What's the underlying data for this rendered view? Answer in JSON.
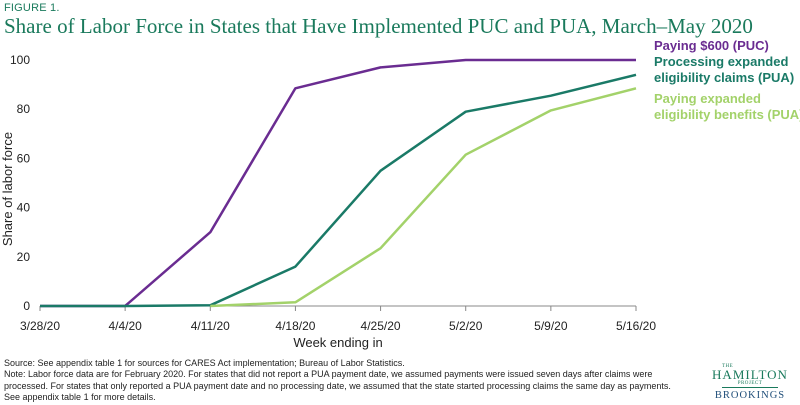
{
  "figure_label": "FIGURE 1.",
  "title": "Share of Labor Force in States that Have Implemented PUC and PUA, March–May 2020",
  "notes": [
    "Source: See appendix table 1 for sources for CARES Act implementation; Bureau of Labor Statistics.",
    "Note: Labor force data are for February 2020. For states that did not report a PUA payment date, we assumed payments were issued seven days after claims were",
    "processed. For states that only reported a PUA payment date and no processing date, we assumed that the state started processing claims the same day as payments.",
    "See appendix table 1 for more details."
  ],
  "logo": {
    "the": "THE",
    "name": "HAMILTON",
    "project": "PROJECT",
    "org": "BROOKINGS"
  },
  "colors": {
    "puc": "#6a2c91",
    "pua_claims": "#1a7a67",
    "pua_benefits": "#a3d26a",
    "title": "#1a7a5c",
    "axis": "#888888"
  },
  "chart_data": {
    "type": "line",
    "categories": [
      "3/28/20",
      "4/4/20",
      "4/11/20",
      "4/18/20",
      "4/25/20",
      "5/2/20",
      "5/9/20",
      "5/16/20"
    ],
    "xlabel": "Week ending in",
    "ylabel": "Share of labor force",
    "ylim": [
      0,
      100
    ],
    "yticks": [
      0,
      20,
      40,
      60,
      80,
      100
    ],
    "grid": false,
    "legend": "inline labels at right end of lines",
    "series": [
      {
        "name": "Paying $600 (PUC)",
        "label_lines": [
          "Paying $600 (PUC)"
        ],
        "color_key": "puc",
        "values": [
          0,
          0,
          30,
          88.5,
          97,
          100,
          100,
          100
        ]
      },
      {
        "name": "Processing expanded eligibility claims (PUA)",
        "label_lines": [
          "Processing expanded",
          "eligibility claims (PUA)"
        ],
        "color_key": "pua_claims",
        "values": [
          0,
          0,
          0.3,
          16,
          55,
          79,
          85.5,
          94
        ]
      },
      {
        "name": "Paying expanded eligibility benefits (PUA)",
        "label_lines": [
          "Paying expanded",
          "eligibility benefits (PUA)"
        ],
        "color_key": "pua_benefits",
        "values": [
          null,
          null,
          0,
          1.5,
          23.5,
          61.5,
          79.5,
          88.5
        ]
      }
    ]
  }
}
